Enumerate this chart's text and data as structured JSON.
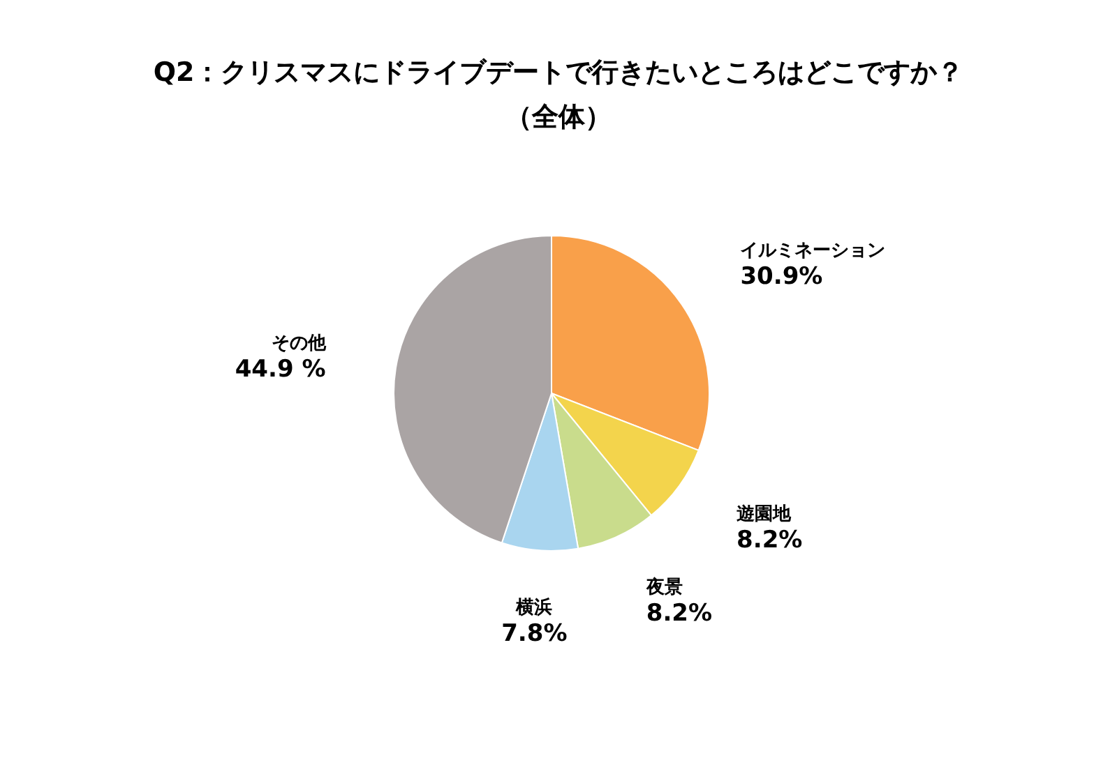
{
  "chart_data": {
    "type": "pie",
    "title": "Q2：クリスマスにドライブデートで行きたいところはどこですか？",
    "subtitle": "（全体）",
    "categories": [
      "イルミネーション",
      "遊園地",
      "夜景",
      "横浜",
      "その他"
    ],
    "values": [
      30.9,
      8.2,
      8.2,
      7.8,
      44.9
    ],
    "colors": [
      "#f9a04a",
      "#f3d44c",
      "#c9dc8c",
      "#a9d5ef",
      "#aaa4a4"
    ],
    "value_labels": [
      "30.9%",
      "8.2%",
      "8.2%",
      "7.8%",
      "44.9 %"
    ]
  }
}
